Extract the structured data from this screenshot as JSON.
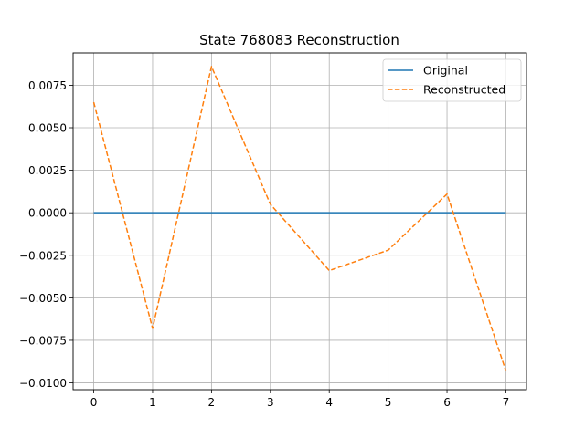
{
  "chart_data": {
    "type": "line",
    "title": "State 768083 Reconstruction",
    "xlabel": "",
    "ylabel": "",
    "x": [
      0,
      1,
      2,
      3,
      4,
      5,
      6,
      7
    ],
    "xlim": [
      -0.35,
      7.35
    ],
    "ylim": [
      -0.0104,
      0.0094
    ],
    "xticks": [
      0,
      1,
      2,
      3,
      4,
      5,
      6,
      7
    ],
    "yticks": [
      -0.01,
      -0.0075,
      -0.005,
      -0.0025,
      0.0,
      0.0025,
      0.005,
      0.0075
    ],
    "ytick_labels": [
      "−0.0100",
      "−0.0075",
      "−0.0050",
      "−0.0025",
      "0.0000",
      "0.0025",
      "0.0050",
      "0.0075"
    ],
    "grid": true,
    "legend_position": "top-right",
    "series": [
      {
        "name": "Original",
        "color": "#1f77b4",
        "style": "solid",
        "values": [
          0,
          0,
          0,
          0,
          0,
          0,
          0,
          0
        ]
      },
      {
        "name": "Reconstructed",
        "color": "#ff7f0e",
        "style": "dashed",
        "values": [
          0.0065,
          -0.0068,
          0.0086,
          0.0005,
          -0.0034,
          -0.0022,
          0.0011,
          -0.0093
        ]
      }
    ]
  }
}
